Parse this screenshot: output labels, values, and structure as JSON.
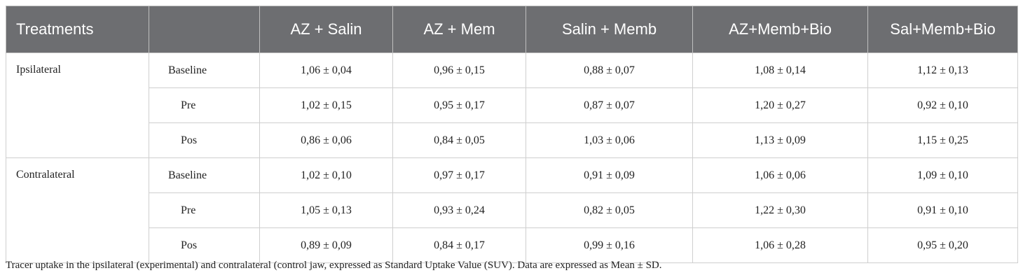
{
  "table": {
    "header": [
      "Treatments",
      "AZ + Salin",
      "AZ + Mem",
      "Salin + Memb",
      "AZ+Memb+Bio",
      "Sal+Memb+Bio"
    ],
    "groups": [
      {
        "name": "Ipsilateral",
        "rows": [
          {
            "label": "Baseline",
            "cells": [
              "1,06 ± 0,04",
              "0,96 ± 0,15",
              "0,88 ± 0,07",
              "1,08 ± 0,14",
              "1,12 ± 0,13"
            ]
          },
          {
            "label": "Pre",
            "cells": [
              "1,02 ± 0,15",
              "0,95 ± 0,17",
              "0,87 ± 0,07",
              "1,20 ± 0,27",
              "0,92 ± 0,10"
            ]
          },
          {
            "label": "Pos",
            "cells": [
              "0,86 ± 0,06",
              "0,84 ± 0,05",
              "1,03 ± 0,06",
              "1,13 ± 0,09",
              "1,15 ± 0,25"
            ]
          }
        ]
      },
      {
        "name": "Contralateral",
        "rows": [
          {
            "label": "Baseline",
            "cells": [
              "1,02 ± 0,10",
              "0,97 ± 0,17",
              "0,91 ± 0,09",
              "1,06 ± 0,06",
              "1,09 ± 0,10"
            ]
          },
          {
            "label": "Pre",
            "cells": [
              "1,05 ± 0,13",
              "0,93 ± 0,24",
              "0,82 ± 0,05",
              "1,22 ± 0,30",
              "0,91 ± 0,10"
            ]
          },
          {
            "label": "Pos",
            "cells": [
              "0,89 ± 0,09",
              "0,84 ± 0,17",
              "0,99 ± 0,16",
              "1,06 ± 0,28",
              "0,95 ± 0,20"
            ]
          }
        ]
      }
    ]
  },
  "caption": "Tracer uptake in the ipsilateral (experimental) and contralateral (control jaw, expressed as Standard Uptake Value (SUV). Data are expressed as Mean ± SD."
}
